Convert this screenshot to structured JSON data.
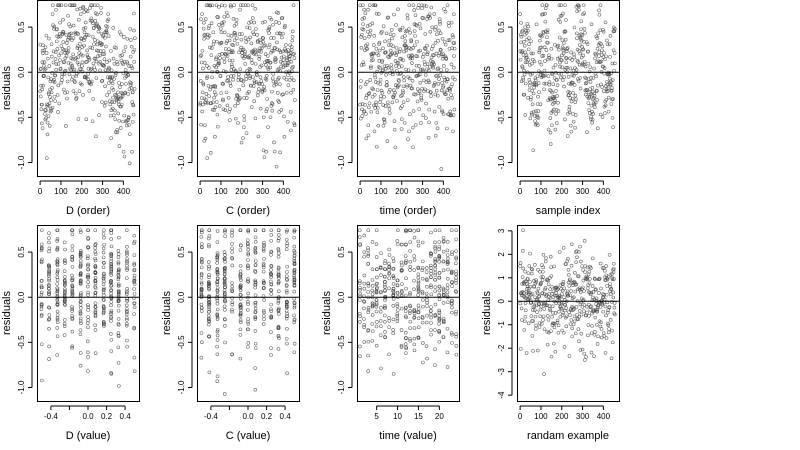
{
  "figure": {
    "layout": "2 rows x 4 columns of residual plots"
  },
  "chart_data": [
    {
      "type": "scatter",
      "id": "d-order",
      "xlabel": "D (order)",
      "ylabel": "residuals",
      "xlim": [
        -15,
        475
      ],
      "ylim": [
        -1.15,
        0.8
      ],
      "xticks": [
        0,
        100,
        200,
        300,
        400
      ],
      "yticks": [
        -1.0,
        -0.5,
        0.0,
        0.5
      ],
      "xtick_labels": [
        "0",
        "100",
        "200",
        "300",
        "400"
      ],
      "ytick_labels": [
        "-1.0",
        "-0.5",
        "0.0",
        "0.5"
      ],
      "reference_line_y": 0,
      "grid": false,
      "n_points": 456,
      "seed": 11,
      "pattern": "two-phase",
      "points_sample": [
        [
          12,
          -0.62
        ],
        [
          55,
          0.31
        ],
        [
          110,
          0.45
        ],
        [
          160,
          -0.21
        ],
        [
          215,
          0.38
        ],
        [
          270,
          0.52
        ],
        [
          330,
          -0.12
        ],
        [
          390,
          -0.28
        ],
        [
          445,
          -0.55
        ]
      ]
    },
    {
      "type": "scatter",
      "id": "c-order",
      "xlabel": "C (order)",
      "ylabel": "residuals",
      "xlim": [
        -15,
        475
      ],
      "ylim": [
        -1.15,
        0.8
      ],
      "xticks": [
        0,
        100,
        200,
        300,
        400
      ],
      "yticks": [
        -1.0,
        -0.5,
        0.0,
        0.5
      ],
      "xtick_labels": [
        "0",
        "100",
        "200",
        "300",
        "400"
      ],
      "ytick_labels": [
        "-1.0",
        "-0.5",
        "0.0",
        "0.5"
      ],
      "reference_line_y": 0,
      "grid": false,
      "n_points": 456,
      "seed": 23,
      "pattern": "random",
      "points_sample": [
        [
          20,
          0.41
        ],
        [
          80,
          -0.33
        ],
        [
          150,
          0.22
        ],
        [
          210,
          -0.61
        ],
        [
          260,
          0.55
        ],
        [
          320,
          0.12
        ],
        [
          380,
          -0.44
        ],
        [
          440,
          0.28
        ]
      ]
    },
    {
      "type": "scatter",
      "id": "time-order",
      "xlabel": "time (order)",
      "ylabel": "residuals",
      "xlim": [
        -15,
        475
      ],
      "ylim": [
        -1.15,
        0.8
      ],
      "xticks": [
        0,
        100,
        200,
        300,
        400
      ],
      "yticks": [
        -1.0,
        -0.5,
        0.0,
        0.5
      ],
      "xtick_labels": [
        "0",
        "100",
        "200",
        "300",
        "400"
      ],
      "ytick_labels": [
        "-1.0",
        "-0.5",
        "0.0",
        "0.5"
      ],
      "reference_line_y": 0,
      "grid": false,
      "n_points": 456,
      "seed": 37,
      "pattern": "random",
      "points_sample": [
        [
          10,
          0.48
        ],
        [
          70,
          -0.25
        ],
        [
          140,
          0.35
        ],
        [
          200,
          -0.52
        ],
        [
          250,
          0.18
        ],
        [
          330,
          0.62
        ],
        [
          400,
          -0.15
        ],
        [
          450,
          0.05
        ]
      ]
    },
    {
      "type": "scatter",
      "id": "sample-index",
      "xlabel": "sample index",
      "ylabel": "residuals",
      "xlim": [
        -15,
        475
      ],
      "ylim": [
        -1.15,
        0.8
      ],
      "xticks": [
        0,
        100,
        200,
        300,
        400
      ],
      "yticks": [
        -1.0,
        -0.5,
        0.0,
        0.5
      ],
      "xtick_labels": [
        "0",
        "100",
        "200",
        "300",
        "400"
      ],
      "ytick_labels": [
        "-1.0",
        "-0.5",
        "0.0",
        "0.5"
      ],
      "reference_line_y": 0,
      "grid": false,
      "n_points": 456,
      "seed": 41,
      "pattern": "blocks",
      "points_sample": [
        [
          25,
          0.22
        ],
        [
          95,
          0.35
        ],
        [
          150,
          -0.45
        ],
        [
          220,
          0.58
        ],
        [
          290,
          -0.18
        ],
        [
          340,
          -0.52
        ],
        [
          420,
          0.31
        ],
        [
          455,
          0.48
        ]
      ]
    },
    {
      "type": "scatter",
      "id": "d-value",
      "xlabel": "D (value)",
      "ylabel": "residuals",
      "xlim": [
        -0.55,
        0.55
      ],
      "ylim": [
        -1.15,
        0.8
      ],
      "xticks": [
        -0.4,
        -0.2,
        0.0,
        0.2,
        0.4
      ],
      "yticks": [
        -1.0,
        -0.5,
        0.0,
        0.5
      ],
      "xtick_labels": [
        "-0.4",
        "",
        "0.0",
        "0.2",
        "0.4"
      ],
      "ytick_labels": [
        "-1.0",
        "-0.5",
        "0.0",
        "0.5"
      ],
      "reference_line_y": 0,
      "grid": false,
      "n_points": 456,
      "seed": 53,
      "pattern": "columns",
      "x_levels": [
        -0.5,
        -0.42,
        -0.33,
        -0.25,
        -0.17,
        -0.08,
        0.0,
        0.08,
        0.17,
        0.25,
        0.33,
        0.42,
        0.5
      ],
      "points_sample": [
        [
          -0.42,
          -0.35
        ],
        [
          -0.17,
          0.45
        ],
        [
          0.0,
          0.55
        ],
        [
          0.08,
          0.33
        ],
        [
          0.25,
          -0.22
        ],
        [
          0.42,
          -0.48
        ]
      ]
    },
    {
      "type": "scatter",
      "id": "c-value",
      "xlabel": "C (value)",
      "ylabel": "residuals",
      "xlim": [
        -0.55,
        0.55
      ],
      "ylim": [
        -1.15,
        0.8
      ],
      "xticks": [
        -0.4,
        -0.2,
        0.0,
        0.2,
        0.4
      ],
      "yticks": [
        -1.0,
        -0.5,
        0.0,
        0.5
      ],
      "xtick_labels": [
        "-0.4",
        "",
        "0.0",
        "0.2",
        "0.4"
      ],
      "ytick_labels": [
        "-1.0",
        "-0.5",
        "0.0",
        "0.5"
      ],
      "reference_line_y": 0,
      "grid": false,
      "n_points": 456,
      "seed": 67,
      "pattern": "columns",
      "x_levels": [
        -0.5,
        -0.42,
        -0.33,
        -0.25,
        -0.17,
        -0.08,
        0.0,
        0.08,
        0.17,
        0.25,
        0.33,
        0.42,
        0.5
      ],
      "points_sample": [
        [
          -0.5,
          0.42
        ],
        [
          -0.33,
          -0.38
        ],
        [
          -0.08,
          0.25
        ],
        [
          0.17,
          -0.15
        ],
        [
          0.33,
          0.52
        ],
        [
          0.5,
          -0.61
        ]
      ]
    },
    {
      "type": "scatter",
      "id": "time-value",
      "xlabel": "time (value)",
      "ylabel": "residuals",
      "xlim": [
        0.3,
        24.7
      ],
      "ylim": [
        -1.15,
        0.8
      ],
      "xticks": [
        5,
        10,
        15,
        20
      ],
      "yticks": [
        -1.0,
        -0.5,
        0.0,
        0.5
      ],
      "xtick_labels": [
        "5",
        "10",
        "15",
        "20"
      ],
      "ytick_labels": [
        "-1.0",
        "-0.5",
        "0.0",
        "0.5"
      ],
      "reference_line_y": 0,
      "grid": false,
      "n_points": 456,
      "seed": 79,
      "pattern": "columns",
      "x_levels": [
        1,
        2,
        3,
        4,
        5,
        6,
        7,
        8,
        9,
        10,
        11,
        12,
        13,
        14,
        15,
        16,
        17,
        18,
        19,
        20,
        21,
        22,
        23,
        24
      ],
      "points_sample": [
        [
          2,
          0.45
        ],
        [
          6,
          -0.32
        ],
        [
          12,
          0.58
        ],
        [
          12,
          -0.45
        ],
        [
          18,
          0.22
        ],
        [
          24,
          -0.41
        ]
      ]
    },
    {
      "type": "scatter",
      "id": "random-example",
      "xlabel": "randam example",
      "ylabel": "residuals",
      "xlim": [
        -15,
        475
      ],
      "ylim": [
        -4.25,
        3.25
      ],
      "xticks": [
        0,
        100,
        200,
        300,
        400
      ],
      "yticks": [
        -4,
        -3,
        -2,
        -1,
        0,
        1,
        2,
        3
      ],
      "xtick_labels": [
        "0",
        "100",
        "200",
        "300",
        "400"
      ],
      "ytick_labels": [
        "-4",
        "-3",
        "-2",
        "-1",
        "0",
        "1",
        "2",
        "3"
      ],
      "reference_line_y": 0,
      "grid": false,
      "n_points": 456,
      "seed": 97,
      "pattern": "normal",
      "points_sample": [
        [
          40,
          1.2
        ],
        [
          110,
          -0.8
        ],
        [
          190,
          2.1
        ],
        [
          250,
          -1.5
        ],
        [
          330,
          0.4
        ],
        [
          410,
          -2.2
        ],
        [
          450,
          1.6
        ]
      ]
    }
  ]
}
